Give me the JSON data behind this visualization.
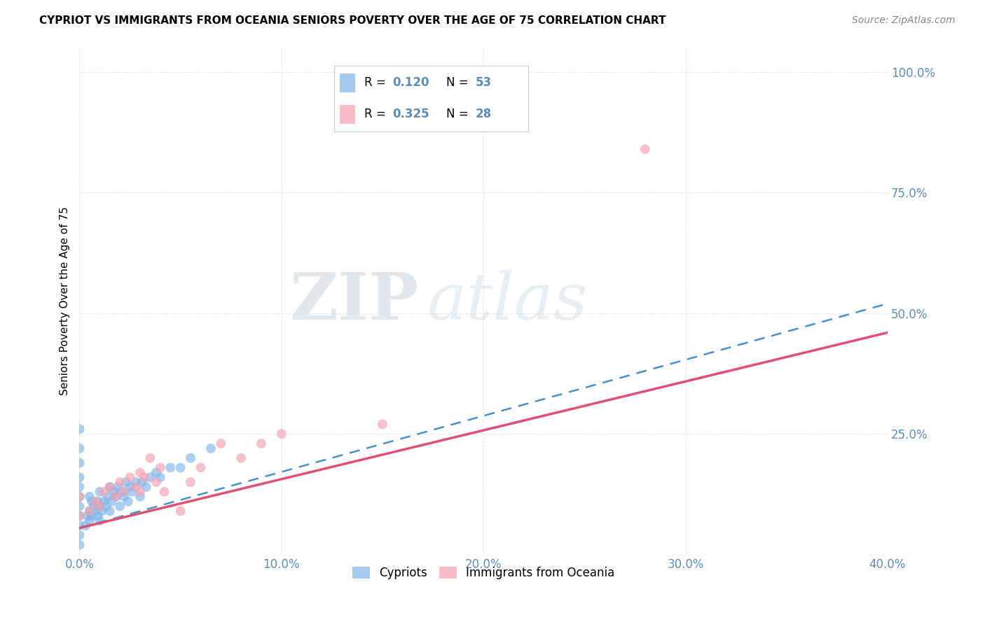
{
  "title": "CYPRIOT VS IMMIGRANTS FROM OCEANIA SENIORS POVERTY OVER THE AGE OF 75 CORRELATION CHART",
  "source": "Source: ZipAtlas.com",
  "ylabel": "Seniors Poverty Over the Age of 75",
  "xlabel": "",
  "xlim": [
    0.0,
    0.4
  ],
  "ylim": [
    0.0,
    1.05
  ],
  "xticks": [
    0.0,
    0.1,
    0.2,
    0.3,
    0.4
  ],
  "yticks": [
    0.0,
    0.25,
    0.5,
    0.75,
    1.0
  ],
  "xticklabels": [
    "0.0%",
    "10.0%",
    "20.0%",
    "30.0%",
    "40.0%"
  ],
  "yticklabels": [
    "",
    "25.0%",
    "50.0%",
    "75.0%",
    "100.0%"
  ],
  "cypriot_color": "#7EB6E8",
  "oceania_color": "#F4A0B0",
  "trendline_cypriot_color": "#4A90C4",
  "trendline_oceania_color": "#E05070",
  "R_cypriot": 0.12,
  "N_cypriot": 53,
  "R_oceania": 0.325,
  "N_oceania": 28,
  "watermark_zip": "ZIP",
  "watermark_atlas": "atlas",
  "background_color": "#ffffff",
  "grid_color": "#e0e0e0",
  "cypriot_x": [
    0.0,
    0.0,
    0.0,
    0.0,
    0.0,
    0.0,
    0.0,
    0.0,
    0.0,
    0.0,
    0.0,
    0.003,
    0.004,
    0.005,
    0.005,
    0.005,
    0.006,
    0.006,
    0.007,
    0.008,
    0.009,
    0.009,
    0.01,
    0.01,
    0.01,
    0.011,
    0.012,
    0.013,
    0.014,
    0.015,
    0.015,
    0.016,
    0.017,
    0.018,
    0.019,
    0.02,
    0.021,
    0.022,
    0.023,
    0.024,
    0.025,
    0.026,
    0.028,
    0.03,
    0.031,
    0.033,
    0.035,
    0.038,
    0.04,
    0.045,
    0.05,
    0.055,
    0.065
  ],
  "cypriot_y": [
    0.02,
    0.04,
    0.06,
    0.08,
    0.1,
    0.12,
    0.14,
    0.16,
    0.19,
    0.22,
    0.26,
    0.06,
    0.08,
    0.07,
    0.09,
    0.12,
    0.08,
    0.11,
    0.1,
    0.09,
    0.08,
    0.11,
    0.07,
    0.1,
    0.13,
    0.09,
    0.11,
    0.1,
    0.12,
    0.09,
    0.14,
    0.11,
    0.13,
    0.12,
    0.14,
    0.1,
    0.13,
    0.12,
    0.15,
    0.11,
    0.14,
    0.13,
    0.15,
    0.12,
    0.15,
    0.14,
    0.16,
    0.17,
    0.16,
    0.18,
    0.18,
    0.2,
    0.22
  ],
  "oceania_x": [
    0.0,
    0.0,
    0.005,
    0.008,
    0.01,
    0.012,
    0.015,
    0.018,
    0.02,
    0.022,
    0.025,
    0.028,
    0.03,
    0.03,
    0.032,
    0.035,
    0.038,
    0.04,
    0.042,
    0.05,
    0.055,
    0.06,
    0.07,
    0.08,
    0.09,
    0.1,
    0.15,
    0.28
  ],
  "oceania_y": [
    0.08,
    0.12,
    0.09,
    0.11,
    0.1,
    0.13,
    0.14,
    0.12,
    0.15,
    0.13,
    0.16,
    0.14,
    0.17,
    0.13,
    0.16,
    0.2,
    0.15,
    0.18,
    0.13,
    0.09,
    0.15,
    0.18,
    0.23,
    0.2,
    0.23,
    0.25,
    0.27,
    0.84
  ],
  "trend_cypriot_x0": 0.0,
  "trend_cypriot_y0": 0.055,
  "trend_cypriot_x1": 0.4,
  "trend_cypriot_y1": 0.52,
  "trend_oceania_x0": 0.0,
  "trend_oceania_y0": 0.055,
  "trend_oceania_x1": 0.4,
  "trend_oceania_y1": 0.46
}
